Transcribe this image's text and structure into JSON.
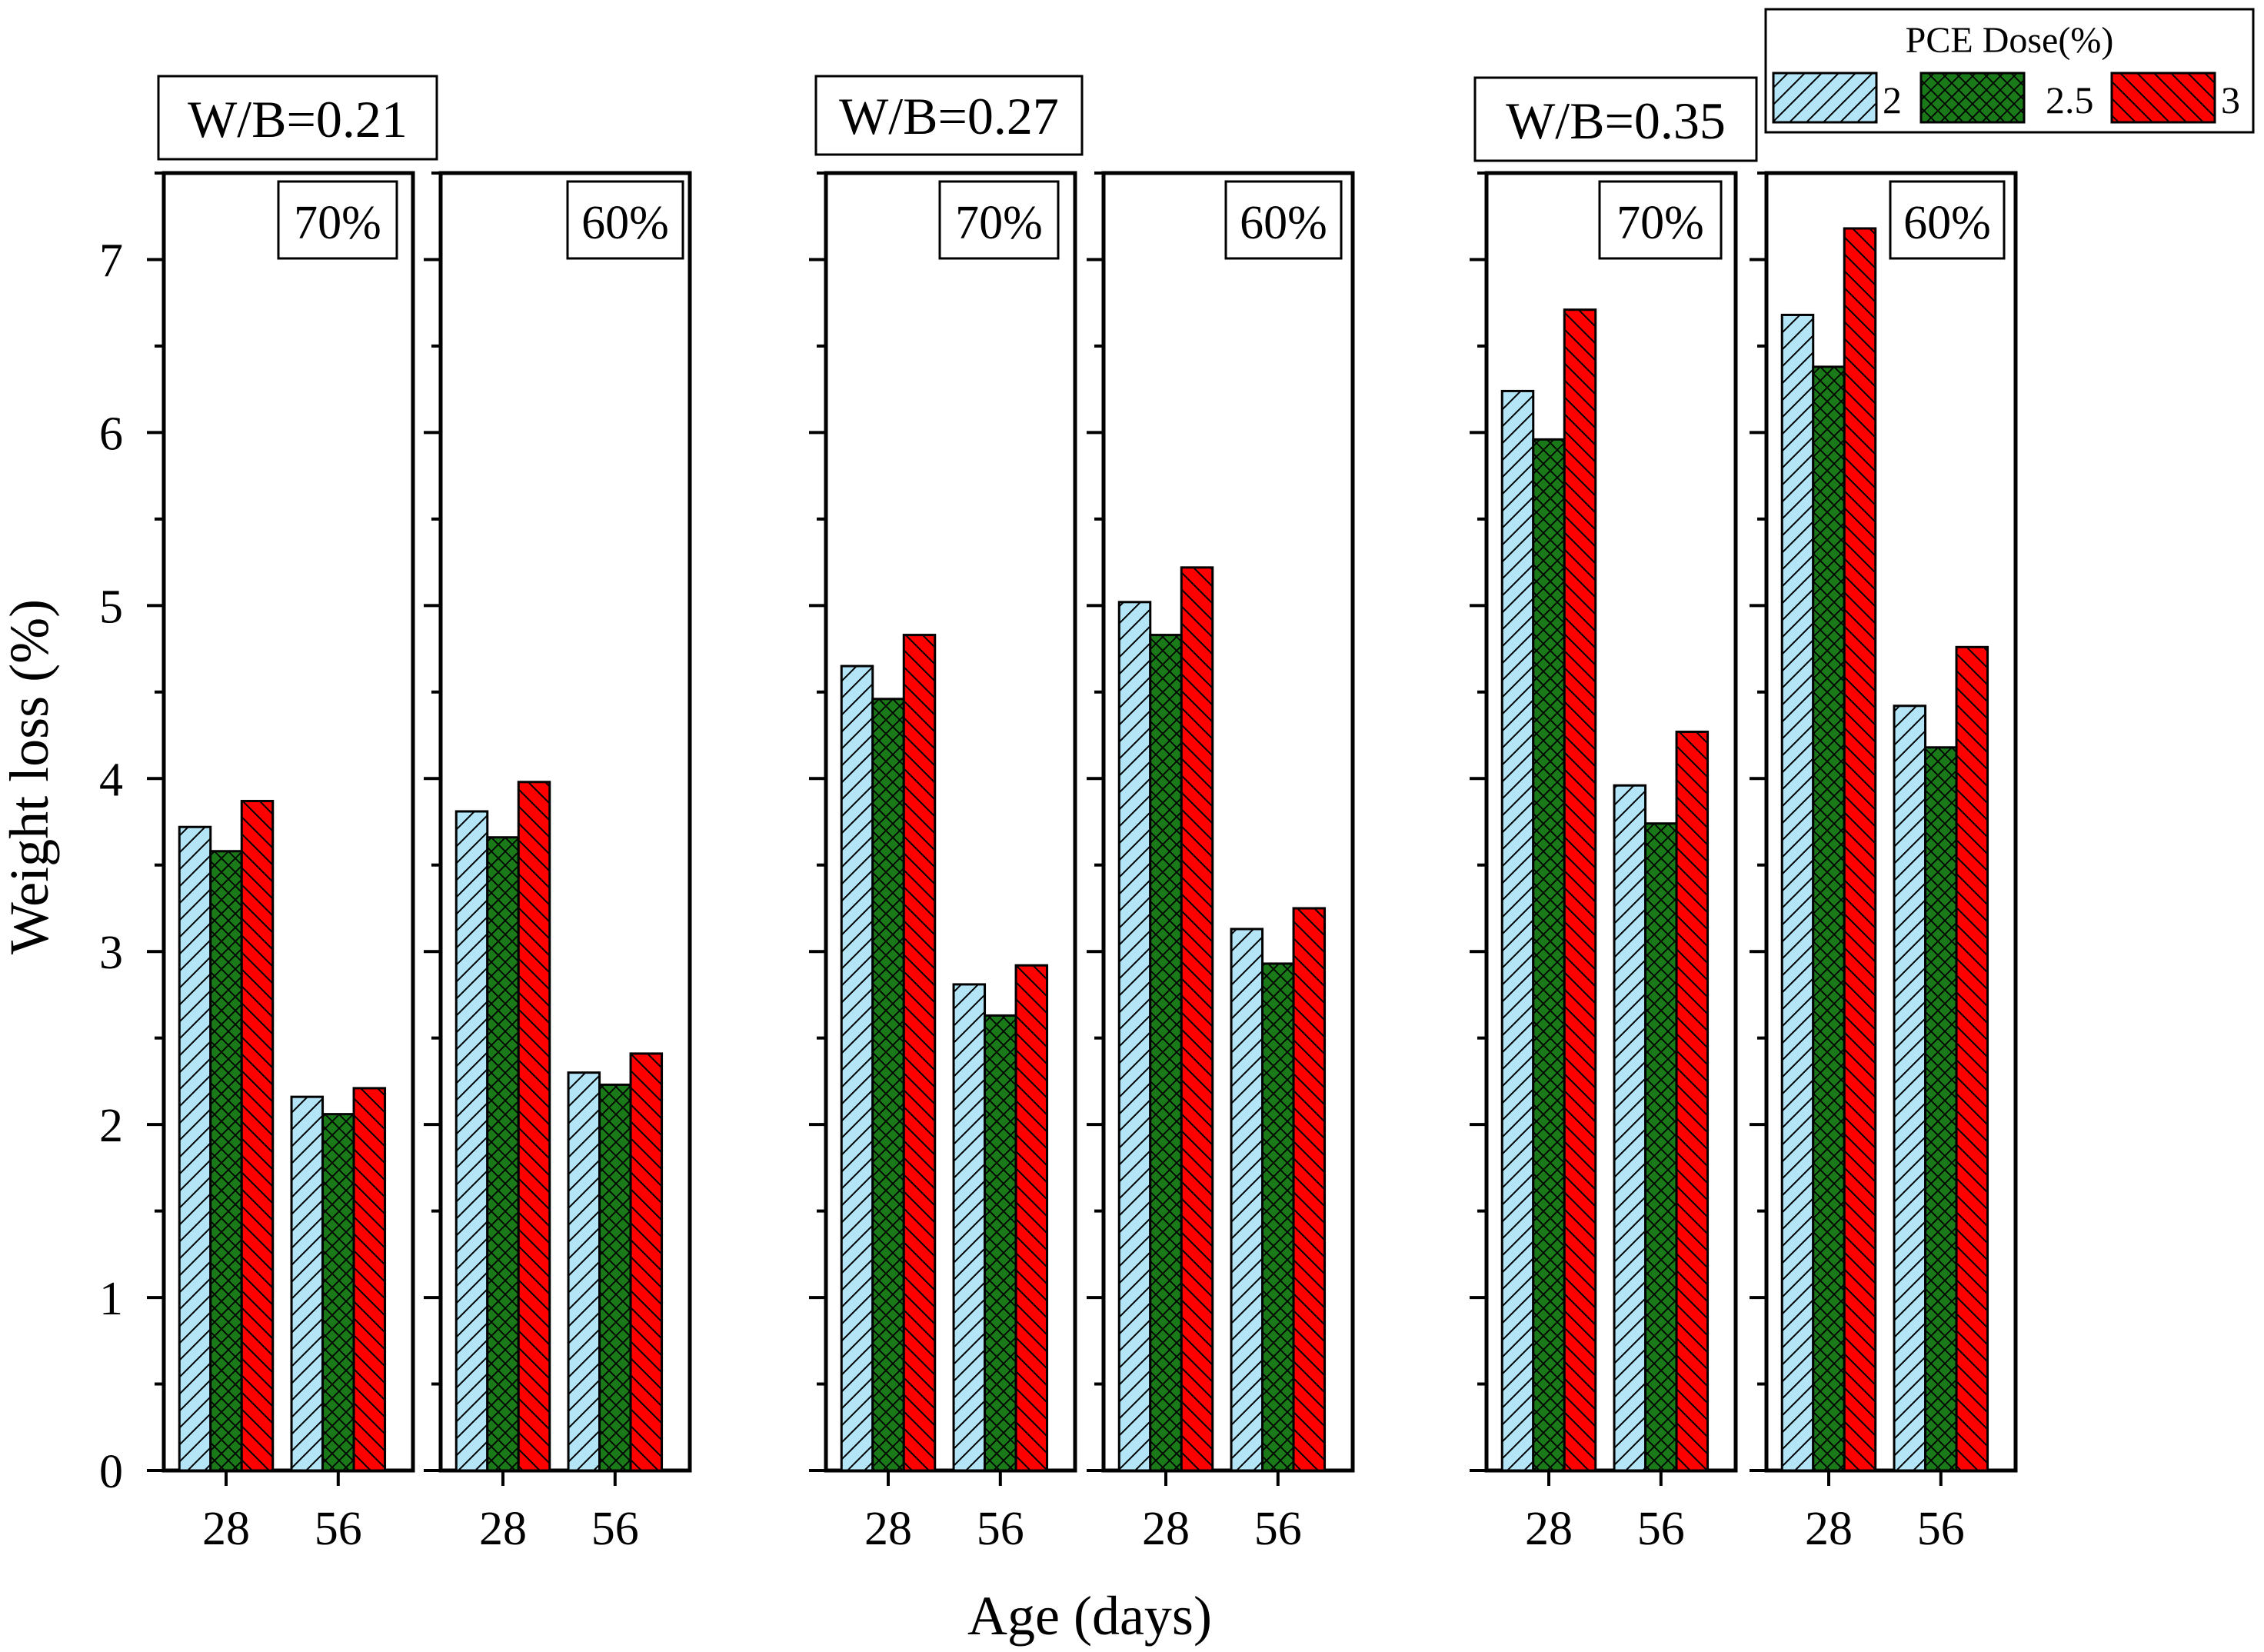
{
  "chart_data": {
    "type": "bar",
    "ylabel": "Weight loss (%)",
    "xlabel": "Age (days)",
    "ylim": [
      0,
      7.5
    ],
    "yticks": [
      0,
      1,
      2,
      3,
      4,
      5,
      6,
      7
    ],
    "categories": [
      "28",
      "56"
    ],
    "legend": {
      "title": "PCE Dose(%)",
      "placement": "top-right",
      "entries": [
        "2",
        "2.5",
        "3"
      ]
    },
    "series_colors": [
      "#b3e5f7",
      "#1a7a1a",
      "#ff0000"
    ],
    "series_patterns": [
      "diagonal-forward",
      "crosshatch",
      "diagonal-backward"
    ],
    "groups": [
      {
        "label": "W/B=0.21",
        "panels": [
          {
            "label": "70%",
            "values": [
              [
                3.72,
                3.58,
                3.87
              ],
              [
                2.16,
                2.06,
                2.21
              ]
            ]
          },
          {
            "label": "60%",
            "values": [
              [
                3.81,
                3.66,
                3.98
              ],
              [
                2.3,
                2.23,
                2.41
              ]
            ]
          }
        ]
      },
      {
        "label": "W/B=0.27",
        "panels": [
          {
            "label": "70%",
            "values": [
              [
                4.65,
                4.46,
                4.83
              ],
              [
                2.81,
                2.63,
                2.92
              ]
            ]
          },
          {
            "label": "60%",
            "values": [
              [
                5.02,
                4.83,
                5.22
              ],
              [
                3.13,
                2.93,
                3.25
              ]
            ]
          }
        ]
      },
      {
        "label": "W/B=0.35",
        "panels": [
          {
            "label": "70%",
            "values": [
              [
                6.24,
                5.96,
                6.71
              ],
              [
                3.96,
                3.74,
                4.27
              ]
            ]
          },
          {
            "label": "60%",
            "values": [
              [
                6.68,
                6.38,
                7.18
              ],
              [
                4.42,
                4.18,
                4.76
              ]
            ]
          }
        ]
      }
    ]
  }
}
